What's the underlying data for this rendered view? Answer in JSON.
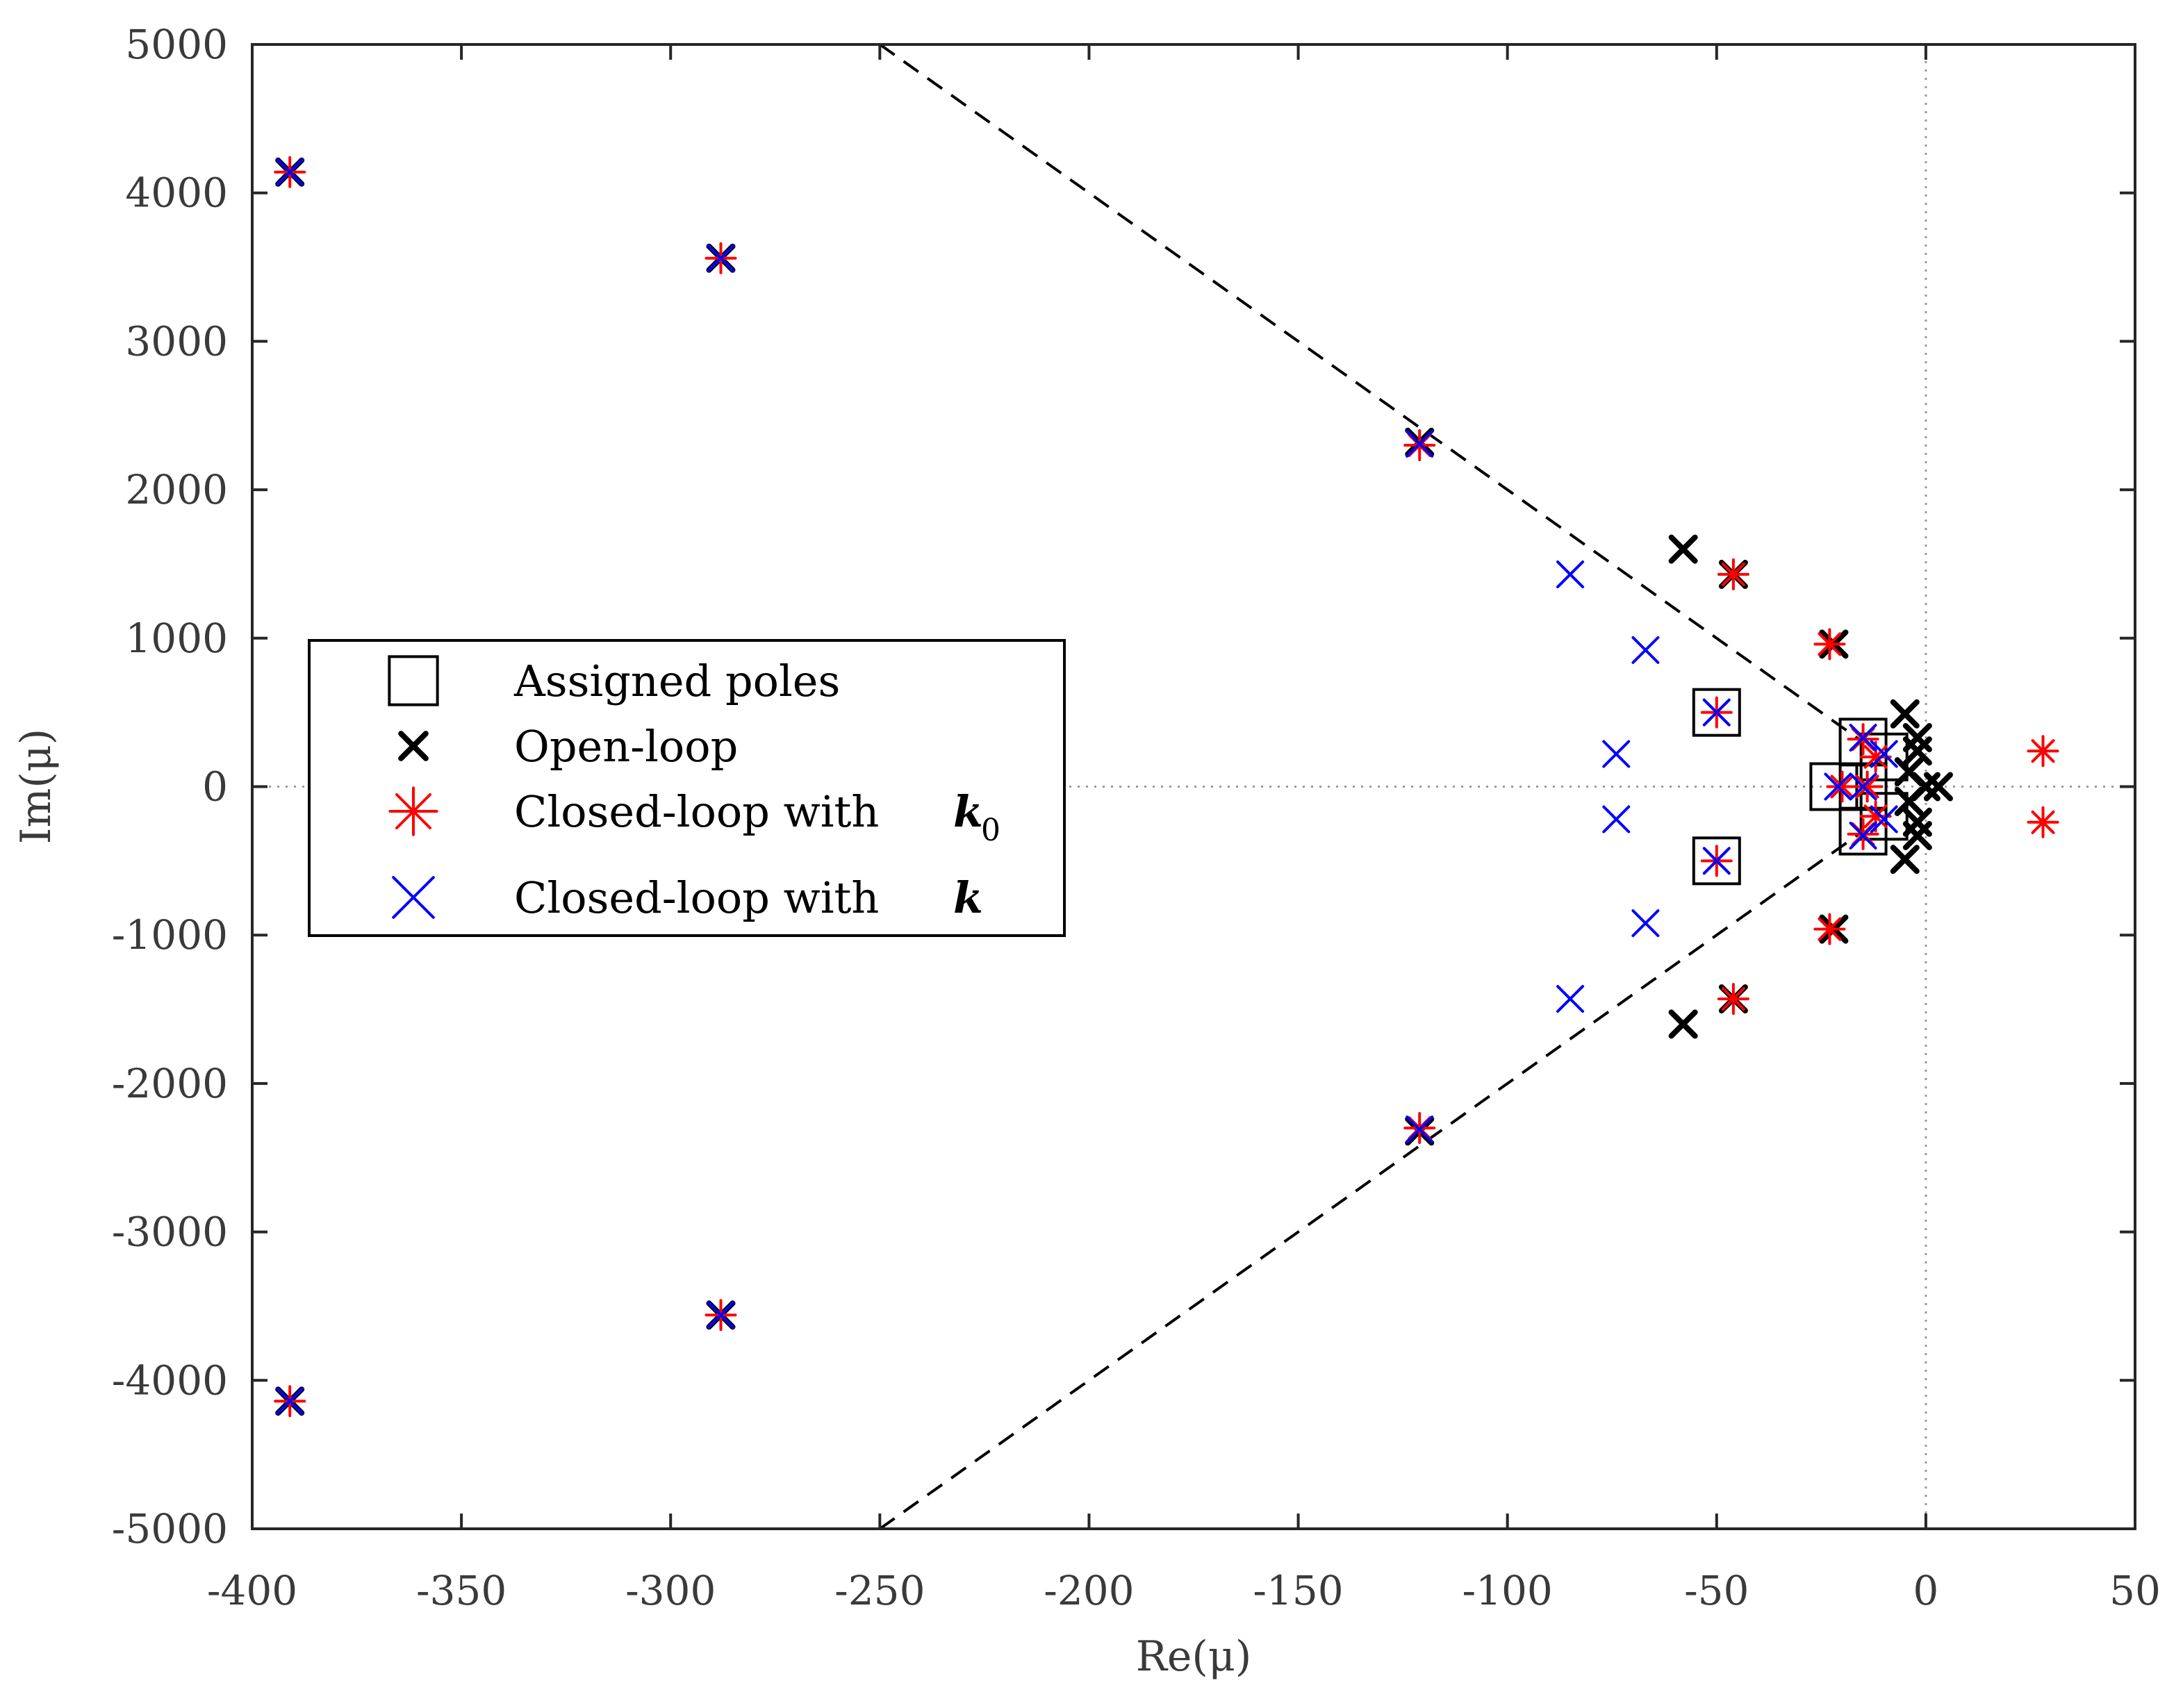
{
  "chart_data": {
    "type": "scatter",
    "title": "",
    "xlabel": "Re(μ)",
    "ylabel": "Im(μ)",
    "xlim": [
      -400,
      50
    ],
    "ylim": [
      -5000,
      5000
    ],
    "xticks": [
      -400,
      -350,
      -300,
      -250,
      -200,
      -150,
      -100,
      -50,
      0,
      50
    ],
    "yticks": [
      -5000,
      -4000,
      -3000,
      -2000,
      -1000,
      0,
      1000,
      2000,
      3000,
      4000,
      5000
    ],
    "grid": false,
    "zero_lines": true,
    "legend_placement": "center-left",
    "boundary_lines": [
      {
        "name": "upper-boundary",
        "x": [
          -250,
          -15
        ],
        "y": [
          5000,
          300
        ]
      },
      {
        "name": "lower-boundary",
        "x": [
          -250,
          -15
        ],
        "y": [
          -5000,
          -300
        ]
      }
    ],
    "legend": [
      {
        "label": "Assigned poles",
        "series": "assigned"
      },
      {
        "label": "Open-loop",
        "series": "open"
      },
      {
        "label": "Closed-loop with",
        "symbol": "k",
        "subscript": "0",
        "series": "k0"
      },
      {
        "label": "Closed-loop with",
        "symbol": "k",
        "subscript": "",
        "series": "k"
      }
    ],
    "series": [
      {
        "name": "Assigned poles",
        "key": "assigned",
        "marker": "square",
        "color": "#000000",
        "points": [
          [
            -50,
            500
          ],
          [
            -50,
            -500
          ],
          [
            -15,
            300
          ],
          [
            -15,
            -300
          ],
          [
            -22,
            0
          ],
          [
            -15,
            0
          ],
          [
            -10,
            200
          ],
          [
            -10,
            -200
          ]
        ]
      },
      {
        "name": "Open-loop",
        "key": "open",
        "marker": "x-bold",
        "color": "#000000",
        "points": [
          [
            -391,
            4140
          ],
          [
            -391,
            -4140
          ],
          [
            -288,
            3560
          ],
          [
            -288,
            -3560
          ],
          [
            -121,
            2320
          ],
          [
            -121,
            -2320
          ],
          [
            -58,
            1600
          ],
          [
            -58,
            -1600
          ],
          [
            -46,
            1430
          ],
          [
            -46,
            -1430
          ],
          [
            -22,
            960
          ],
          [
            -22,
            -960
          ],
          [
            -5,
            490
          ],
          [
            -5,
            -490
          ],
          [
            -2,
            330
          ],
          [
            -2,
            -330
          ],
          [
            -2,
            240
          ],
          [
            -2,
            -240
          ],
          [
            -4,
            100
          ],
          [
            -4,
            -100
          ],
          [
            0,
            0
          ],
          [
            3,
            0
          ]
        ]
      },
      {
        "name": "Closed-loop with k0",
        "key": "k0",
        "marker": "asterisk",
        "color": "#ff0000",
        "points": [
          [
            -391,
            4140
          ],
          [
            -391,
            -4140
          ],
          [
            -288,
            3560
          ],
          [
            -288,
            -3560
          ],
          [
            -121,
            2300
          ],
          [
            -121,
            -2300
          ],
          [
            -46,
            1430
          ],
          [
            -46,
            -1430
          ],
          [
            -23,
            960
          ],
          [
            -23,
            -960
          ],
          [
            -50,
            500
          ],
          [
            -50,
            -500
          ],
          [
            -15,
            320
          ],
          [
            -15,
            -320
          ],
          [
            -12,
            200
          ],
          [
            -12,
            -200
          ],
          [
            -20,
            0
          ],
          [
            -14,
            0
          ],
          [
            28,
            240
          ],
          [
            28,
            -240
          ]
        ]
      },
      {
        "name": "Closed-loop with k",
        "key": "k",
        "marker": "x",
        "color": "#0000ff",
        "points": [
          [
            -391,
            4140
          ],
          [
            -391,
            -4140
          ],
          [
            -288,
            3560
          ],
          [
            -288,
            -3560
          ],
          [
            -121,
            2310
          ],
          [
            -121,
            -2310
          ],
          [
            -85,
            1430
          ],
          [
            -85,
            -1430
          ],
          [
            -67,
            920
          ],
          [
            -67,
            -920
          ],
          [
            -74,
            220
          ],
          [
            -74,
            -220
          ],
          [
            -50,
            500
          ],
          [
            -50,
            -500
          ],
          [
            -15,
            330
          ],
          [
            -15,
            -330
          ],
          [
            -10,
            220
          ],
          [
            -10,
            -220
          ],
          [
            -21,
            0
          ],
          [
            -15,
            0
          ]
        ]
      }
    ]
  }
}
